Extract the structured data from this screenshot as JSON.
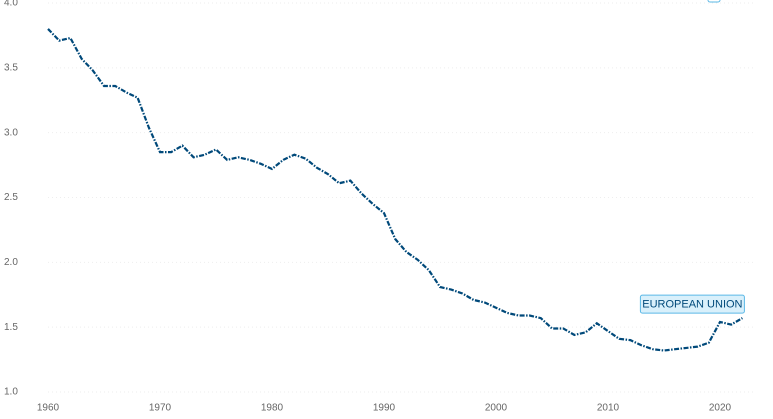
{
  "chart_data": {
    "type": "line",
    "x": [
      1960,
      1961,
      1962,
      1963,
      1964,
      1965,
      1966,
      1967,
      1968,
      1969,
      1970,
      1971,
      1972,
      1973,
      1974,
      1975,
      1976,
      1977,
      1978,
      1979,
      1980,
      1981,
      1982,
      1983,
      1984,
      1985,
      1986,
      1987,
      1988,
      1989,
      1990,
      1991,
      1992,
      1993,
      1994,
      1995,
      1996,
      1997,
      1998,
      1999,
      2000,
      2001,
      2002,
      2003,
      2004,
      2005,
      2006,
      2007,
      2008,
      2009,
      2010,
      2011,
      2012,
      2013,
      2014,
      2015,
      2016,
      2017,
      2018,
      2019,
      2020,
      2021,
      2022
    ],
    "series": [
      {
        "name": "EUROPEAN UNION",
        "color": "#00497a",
        "values": [
          3.8,
          3.71,
          3.73,
          3.57,
          3.48,
          3.36,
          3.36,
          3.31,
          3.27,
          3.04,
          2.85,
          2.85,
          2.9,
          2.81,
          2.83,
          2.87,
          2.79,
          2.81,
          2.79,
          2.76,
          2.72,
          2.79,
          2.83,
          2.8,
          2.73,
          2.68,
          2.61,
          2.63,
          2.53,
          2.45,
          2.38,
          2.18,
          2.08,
          2.02,
          1.94,
          1.81,
          1.79,
          1.76,
          1.71,
          1.69,
          1.65,
          1.61,
          1.59,
          1.59,
          1.57,
          1.49,
          1.49,
          1.44,
          1.46,
          1.53,
          1.47,
          1.41,
          1.4,
          1.36,
          1.33,
          1.32,
          1.33,
          1.34,
          1.35,
          1.38,
          1.54,
          1.52,
          1.57
        ]
      }
    ],
    "xlim": [
      1960,
      2023
    ],
    "xticks": [
      1960,
      1970,
      1980,
      1990,
      2000,
      2010,
      2020
    ],
    "ylim": [
      1,
      4
    ],
    "yticks": [
      {
        "value": 1,
        "label": "1.0"
      },
      1.5,
      {
        "value": 2,
        "label": "2.0"
      },
      2.5,
      {
        "value": 3,
        "label": "3.0"
      },
      3.5,
      {
        "value": 4,
        "label": "4.0"
      }
    ],
    "grid": true
  }
}
